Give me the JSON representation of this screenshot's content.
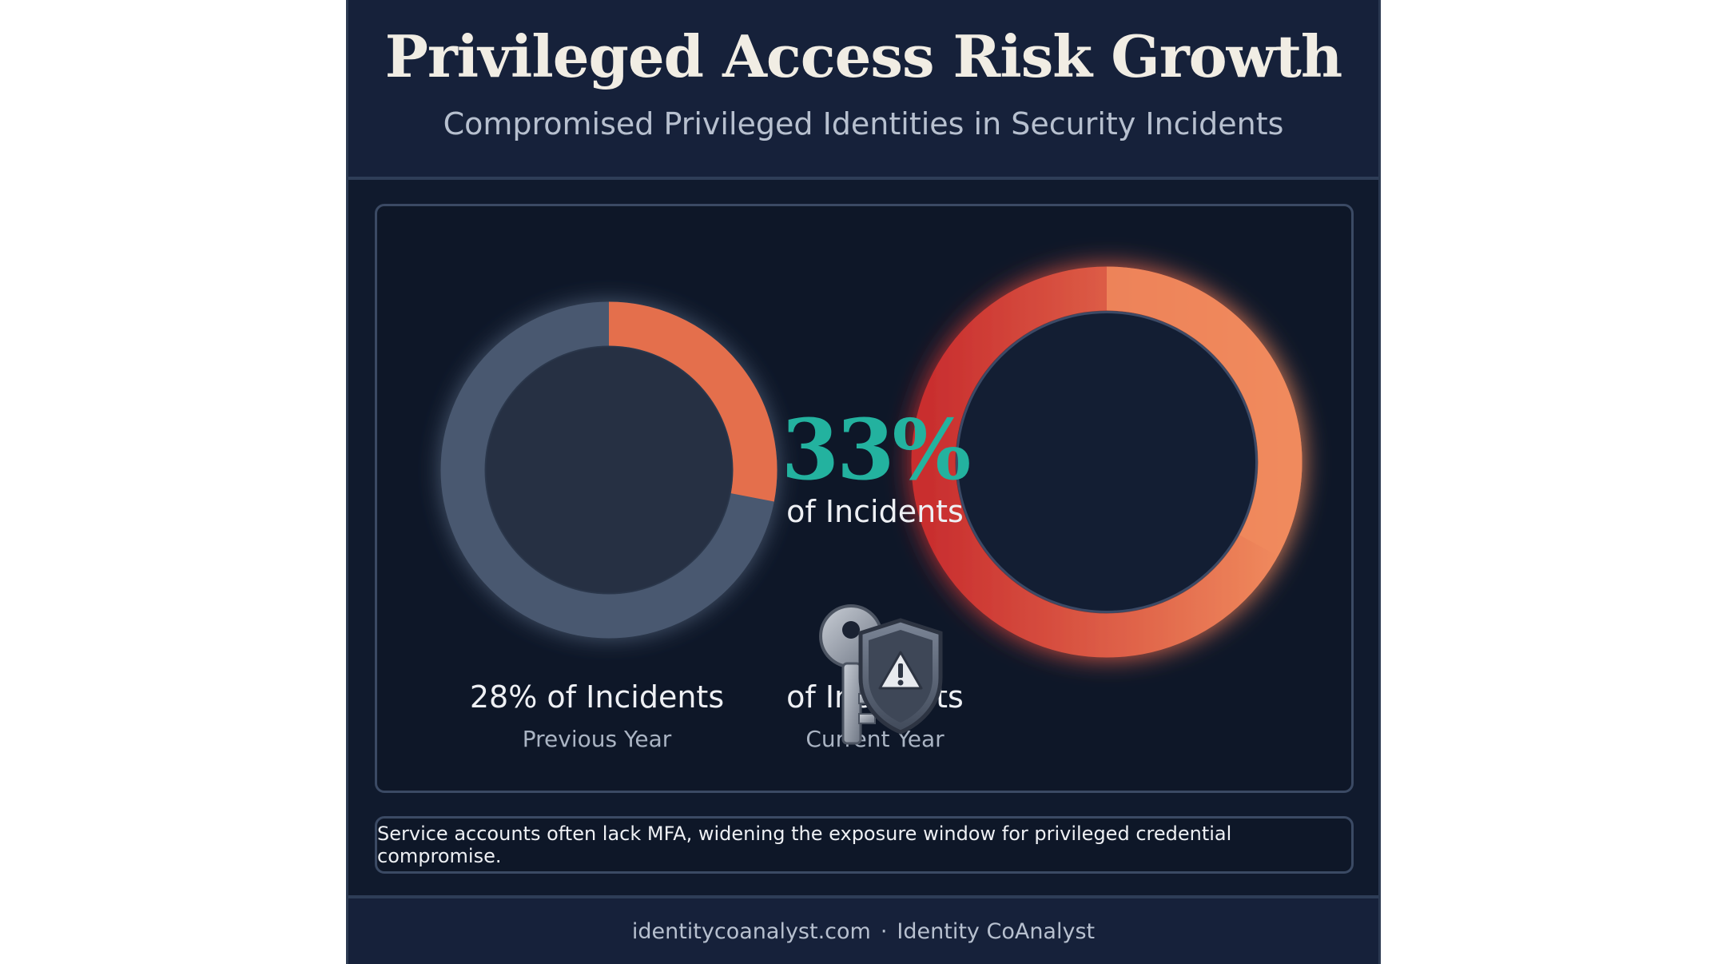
{
  "header": {
    "title": "Privileged Access Risk Growth",
    "subtitle": "Compromised Privileged Identities in Security Incidents"
  },
  "chart_data": {
    "type": "pie",
    "title": "Privileged Access Risk Growth",
    "subtitle": "Compromised Privileged Identities in Security Incidents",
    "series": [
      {
        "name": "Previous Year",
        "value": 28,
        "unit": "%",
        "label": "28% of Incidents"
      },
      {
        "name": "Current Year",
        "value": 33,
        "unit": "%",
        "label": "of Incidents"
      }
    ],
    "center_label": {
      "value": "33%",
      "caption": "of Incidents"
    },
    "colors": {
      "previous_track": "#4a5970",
      "previous_fill": "#e46f4c",
      "current_fill_start": "#c92f2f",
      "current_fill_end": "#f08a5d",
      "center_value": "#23b29f"
    }
  },
  "labels": {
    "left_main": "28% of Incidents",
    "left_sub": "Previous Year",
    "right_main": "of Incidents",
    "right_sub": "Current Year",
    "center_big": "33%",
    "center_sub": "of Incidents"
  },
  "icons": {
    "center_icon": "key-shield-warning-icon"
  },
  "note": {
    "text": "Service accounts often lack MFA, widening the exposure window for privileged credential compromise."
  },
  "footer": {
    "site": "identitycoanalyst.com",
    "separator": "·",
    "brand": "Identity CoAnalyst"
  }
}
